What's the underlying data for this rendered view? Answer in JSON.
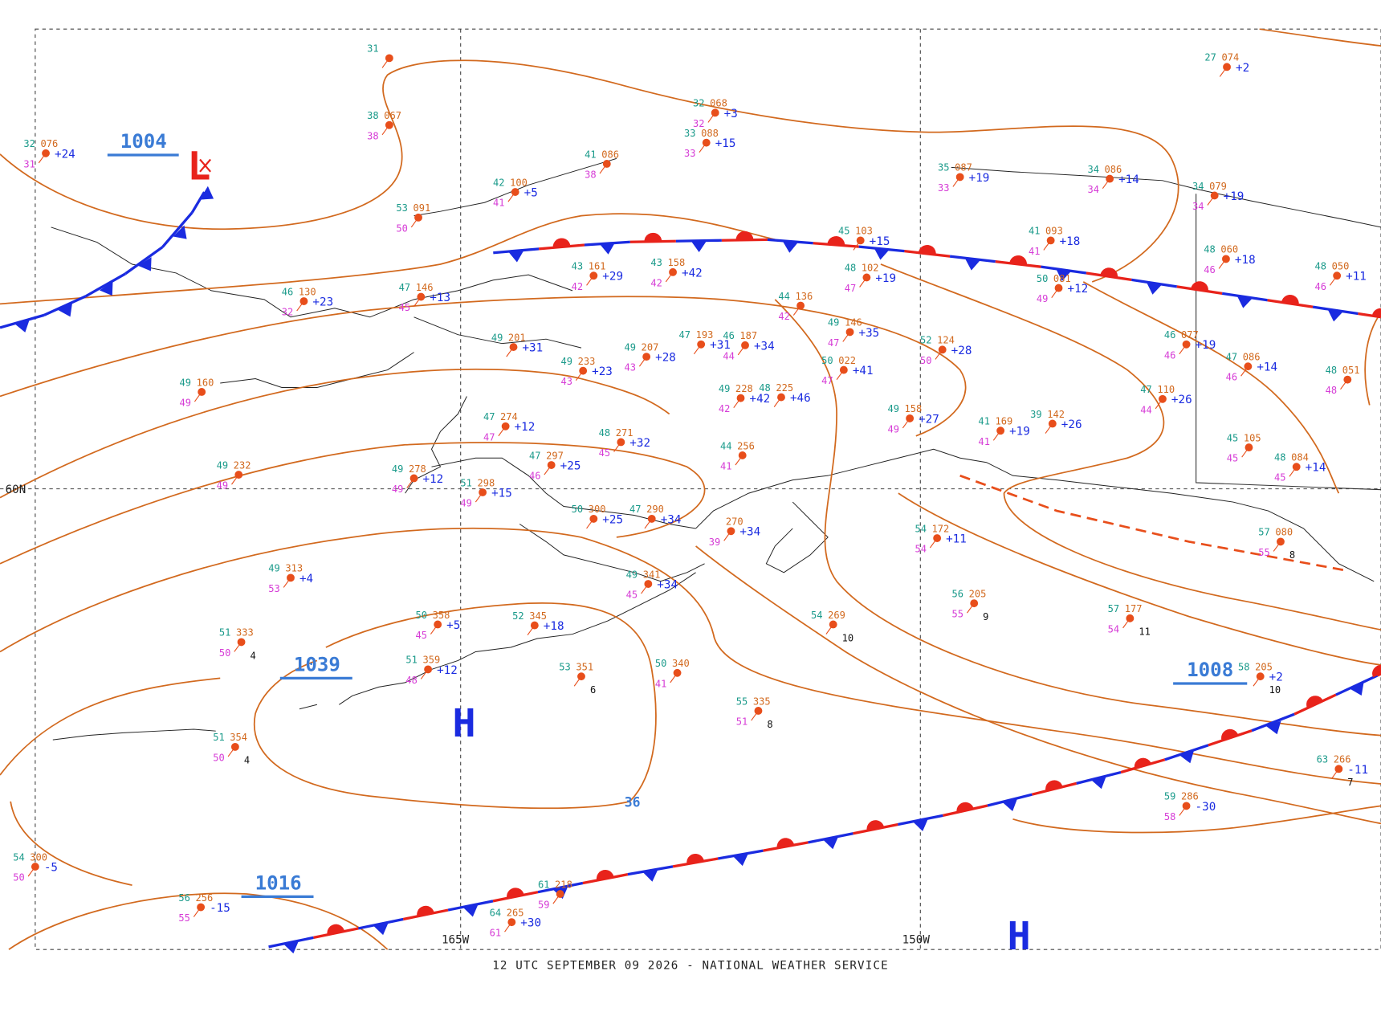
{
  "map": {
    "footer": "12 UTC SEPTEMBER 09 2026 - NATIONAL WEATHER SERVICE",
    "grid_labels": [
      "60N",
      "165W",
      "150W"
    ],
    "isobar_labels": [
      "1004",
      "1039",
      "1016",
      "1008",
      "36"
    ],
    "centers": [
      "L",
      "H",
      "H"
    ],
    "stations": [
      {
        "temp": "32",
        "pressure": "076",
        "dewpoint": "31",
        "tendency": "+24"
      },
      {
        "temp": "31"
      },
      {
        "temp": "38",
        "pressure": "067",
        "dewpoint": "38"
      },
      {
        "temp": "32",
        "pressure": "068",
        "dewpoint": "32",
        "tendency": "+3"
      },
      {
        "temp": "33",
        "pressure": "088",
        "dewpoint": "33",
        "tendency": "+15"
      },
      {
        "temp": "41",
        "pressure": "086",
        "dewpoint": "38"
      },
      {
        "temp": "42",
        "pressure": "100",
        "dewpoint": "41",
        "tendency": "+5"
      },
      {
        "temp": "53",
        "pressure": "091",
        "dewpoint": "50"
      },
      {
        "temp": "35",
        "pressure": "087",
        "dewpoint": "33",
        "tendency": "+19"
      },
      {
        "temp": "34",
        "pressure": "086",
        "dewpoint": "34",
        "tendency": "+14"
      },
      {
        "temp": "34",
        "pressure": "079",
        "dewpoint": "34",
        "tendency": "+19"
      },
      {
        "temp": "27",
        "pressure": "074",
        "tendency": "+2"
      },
      {
        "temp": "45",
        "pressure": "103",
        "tendency": "+15"
      },
      {
        "temp": "41",
        "pressure": "093",
        "dewpoint": "41",
        "tendency": "+18"
      },
      {
        "temp": "48",
        "pressure": "060",
        "dewpoint": "46",
        "tendency": "+18"
      },
      {
        "temp": "48",
        "pressure": "102",
        "dewpoint": "47",
        "tendency": "+19"
      },
      {
        "temp": "50",
        "pressure": "081",
        "dewpoint": "49",
        "tendency": "+12"
      },
      {
        "temp": "43",
        "pressure": "161",
        "dewpoint": "42",
        "tendency": "+29"
      },
      {
        "temp": "43",
        "pressure": "158",
        "dewpoint": "42",
        "tendency": "+42"
      },
      {
        "temp": "46",
        "pressure": "130",
        "dewpoint": "32",
        "tendency": "+23"
      },
      {
        "temp": "47",
        "pressure": "146",
        "dewpoint": "45",
        "tendency": "+13"
      },
      {
        "temp": "44",
        "pressure": "136",
        "dewpoint": "42"
      },
      {
        "temp": "49",
        "pressure": "146",
        "dewpoint": "47",
        "tendency": "+35"
      },
      {
        "temp": "49",
        "pressure": "201",
        "tendency": "+31"
      },
      {
        "temp": "49",
        "pressure": "207",
        "dewpoint": "43",
        "tendency": "+28"
      },
      {
        "temp": "47",
        "pressure": "193",
        "tendency": "+31"
      },
      {
        "temp": "46",
        "pressure": "187",
        "dewpoint": "44",
        "tendency": "+34"
      },
      {
        "temp": "52",
        "pressure": "124",
        "dewpoint": "50",
        "tendency": "+28"
      },
      {
        "temp": "46",
        "pressure": "077",
        "dewpoint": "46",
        "tendency": "+19"
      },
      {
        "temp": "50",
        "pressure": "022",
        "dewpoint": "47",
        "tendency": "+41"
      },
      {
        "temp": "49",
        "pressure": "233",
        "dewpoint": "43",
        "tendency": "+23"
      },
      {
        "temp": "49",
        "pressure": "160",
        "dewpoint": "49"
      },
      {
        "temp": "49",
        "pressure": "228",
        "dewpoint": "42",
        "tendency": "+42"
      },
      {
        "temp": "48",
        "pressure": "225",
        "tendency": "+46"
      },
      {
        "temp": "47",
        "pressure": "110",
        "dewpoint": "44",
        "tendency": "+26"
      },
      {
        "temp": "49",
        "pressure": "158",
        "dewpoint": "49",
        "tendency": "+27"
      },
      {
        "temp": "39",
        "pressure": "142",
        "tendency": "+26"
      },
      {
        "temp": "41",
        "pressure": "169",
        "dewpoint": "41",
        "tendency": "+19"
      },
      {
        "temp": "47",
        "pressure": "274",
        "dewpoint": "47",
        "tendency": "+12"
      },
      {
        "temp": "48",
        "pressure": "271",
        "dewpoint": "45",
        "tendency": "+32"
      },
      {
        "temp": "44",
        "pressure": "256",
        "dewpoint": "41"
      },
      {
        "temp": "47",
        "pressure": "297",
        "dewpoint": "46",
        "tendency": "+25"
      },
      {
        "temp": "49",
        "pressure": "232",
        "dewpoint": "49"
      },
      {
        "temp": "49",
        "pressure": "278",
        "dewpoint": "49",
        "tendency": "+12"
      },
      {
        "temp": "51",
        "pressure": "298",
        "dewpoint": "49",
        "tendency": "+15"
      },
      {
        "temp": "49",
        "pressure": "313",
        "dewpoint": "53",
        "tendency": "+4"
      },
      {
        "temp": "50",
        "pressure": "300",
        "tendency": "+25"
      },
      {
        "temp": "47",
        "pressure": "290",
        "tendency": "+34"
      },
      {
        "pressure": "270",
        "dewpoint": "39",
        "tendency": "+34"
      },
      {
        "temp": "49",
        "pressure": "341",
        "dewpoint": "45",
        "tendency": "+34"
      },
      {
        "temp": "50",
        "pressure": "358",
        "dewpoint": "45",
        "tendency": "+5"
      },
      {
        "temp": "51",
        "pressure": "333",
        "dewpoint": "50",
        "extra": "4"
      },
      {
        "temp": "52",
        "pressure": "345",
        "tendency": "+18"
      },
      {
        "temp": "53",
        "pressure": "351",
        "extra": "6"
      },
      {
        "temp": "50",
        "pressure": "340",
        "dewpoint": "41"
      },
      {
        "temp": "51",
        "pressure": "359",
        "dewpoint": "48",
        "tendency": "+12"
      },
      {
        "temp": "55",
        "pressure": "335",
        "dewpoint": "51",
        "extra": "8"
      },
      {
        "temp": "51",
        "pressure": "354",
        "dewpoint": "50",
        "extra": "4"
      },
      {
        "temp": "54",
        "pressure": "300",
        "dewpoint": "50",
        "tendency": "-5"
      },
      {
        "temp": "56",
        "pressure": "256",
        "dewpoint": "55",
        "tendency": "-15"
      },
      {
        "temp": "61",
        "pressure": "218",
        "dewpoint": "59"
      },
      {
        "temp": "64",
        "pressure": "265",
        "dewpoint": "61",
        "tendency": "+30"
      },
      {
        "temp": "54",
        "pressure": "172",
        "dewpoint": "54",
        "tendency": "+11"
      },
      {
        "temp": "56",
        "pressure": "205",
        "dewpoint": "55",
        "extra": "9"
      },
      {
        "temp": "54",
        "pressure": "269",
        "extra": "10"
      },
      {
        "temp": "57",
        "pressure": "177",
        "dewpoint": "54",
        "extra": "11"
      },
      {
        "temp": "57",
        "pressure": "080",
        "dewpoint": "55",
        "extra": "8"
      },
      {
        "temp": "58",
        "pressure": "205",
        "tendency": "+2",
        "extra": "10"
      },
      {
        "temp": "63",
        "pressure": "266",
        "tendency": "-11",
        "extra": "7"
      },
      {
        "temp": "59",
        "pressure": "286",
        "dewpoint": "58",
        "tendency": "-30"
      },
      {
        "temp": "45",
        "pressure": "105",
        "dewpoint": "45"
      },
      {
        "temp": "48",
        "pressure": "084",
        "dewpoint": "45",
        "tendency": "+14"
      },
      {
        "temp": "48",
        "pressure": "050",
        "dewpoint": "46",
        "tendency": "+11"
      },
      {
        "temp": "47",
        "pressure": "086",
        "dewpoint": "46",
        "tendency": "+14"
      },
      {
        "temp": "48",
        "pressure": "051",
        "dewpoint": "48"
      }
    ]
  }
}
